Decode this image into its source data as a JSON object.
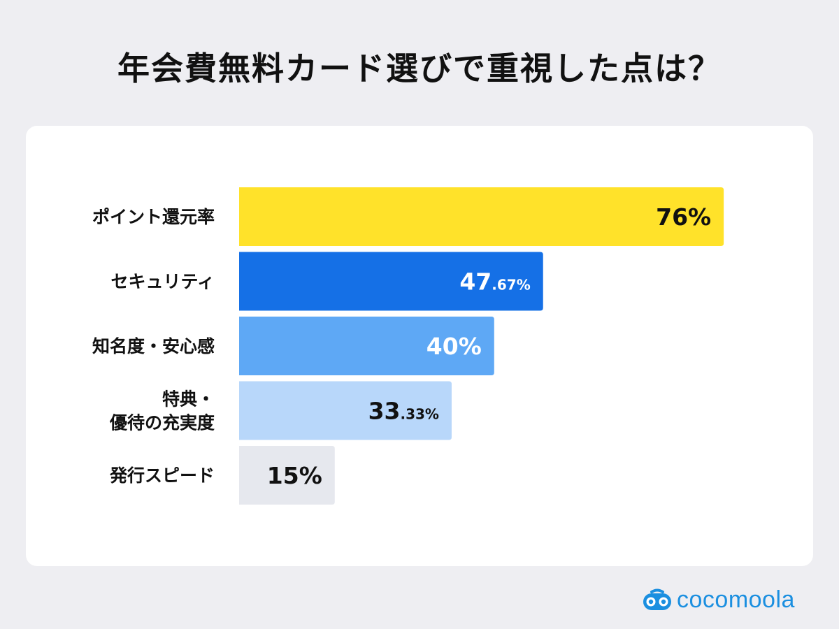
{
  "title": "年会費無料カード選びで重視した点は？",
  "brand": {
    "name": "cocomoola",
    "color": "#1b8fe0",
    "icon": "cocomoola-logo-icon"
  },
  "chart_data": {
    "type": "bar",
    "orientation": "horizontal",
    "title": "年会費無料カード選びで重視した点は？",
    "xlim": [
      0,
      100
    ],
    "grid": false,
    "legend": "none",
    "categories": [
      [
        "ポイント還元率"
      ],
      [
        "セキュリティ"
      ],
      [
        "知名度・安心感"
      ],
      [
        "特典・",
        "優待の充実度"
      ],
      [
        "発行スピード"
      ]
    ],
    "values": [
      76,
      47.67,
      40,
      33.33,
      15
    ],
    "value_labels": [
      {
        "main": "76%",
        "small": ""
      },
      {
        "main": "47",
        "small": ".67%"
      },
      {
        "main": "40%",
        "small": ""
      },
      {
        "main": "33",
        "small": ".33%"
      },
      {
        "main": "15%",
        "small": ""
      }
    ],
    "colors": [
      "#ffe22a",
      "#1570e6",
      "#5ea8f5",
      "#b8d7fa",
      "#e6e8ee"
    ],
    "label_colors": [
      "#111111",
      "#ffffff",
      "#ffffff",
      "#111111",
      "#111111"
    ]
  }
}
